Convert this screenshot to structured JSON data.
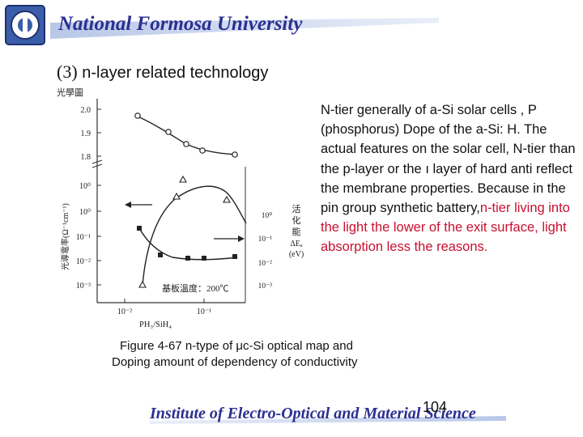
{
  "header": {
    "title": "National Formosa University",
    "logo": "university-logo"
  },
  "section": {
    "number": "(3)",
    "title": "n-layer related technology"
  },
  "figure": {
    "top_left_label": "光學圖",
    "y_axis_label": "光導電率(Ω⁻¹cm⁻¹)",
    "y_ticks_left": [
      "2.0",
      "1.9",
      "1.8",
      "10⁰",
      "10⁰",
      "10⁻¹",
      "10⁻²",
      "10⁻³"
    ],
    "y_ticks_right": [
      "10⁰",
      "10⁻¹",
      "10⁻²",
      "10⁻³"
    ],
    "right_axis_label": [
      "活",
      "化",
      "能",
      "ΔEₐ",
      "(eV)"
    ],
    "x_ticks": [
      "10⁻²",
      "10⁻¹"
    ],
    "x_axis_label": "PH₃/SiH₄",
    "substrate_temp_label": "基板溫度：200℃"
  },
  "body_text": {
    "normal": "N-tier generally of a-Si solar cells , P (phosphorus) Dope of the a-Si: H. The actual features on the solar cell, N-tier than the p-layer or the ı layer of hard anti reflect the membrane properties. Because in the pin group synthetic battery,",
    "highlight": "n-tier living into the light the lower of the exit surface, light absorption less the reasons."
  },
  "caption": {
    "line1": "Figure 4-67 n-type of μc-Si optical map and",
    "line2": "Doping amount of dependency of conductivity"
  },
  "footer": {
    "institute": "Institute of Electro-Optical and Material Science",
    "page_number": "104"
  },
  "colors": {
    "brand_blue": "#2b2f8f",
    "highlight_red": "#c8102e"
  }
}
